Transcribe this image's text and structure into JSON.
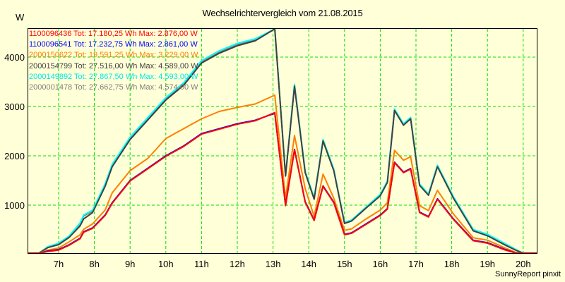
{
  "chart": {
    "title": "Wechselrichtervergleich vom 21.08.2015",
    "y_unit": "W",
    "footer": "SunnyReport pinxit",
    "legend": [
      {
        "label": "1100096436 Tot: 17.180,25 Wh Max: 2.876,00 W",
        "color": "#ff0000"
      },
      {
        "label": "1100096541 Tot: 17.232,75 Wh Max: 2.861,00 W",
        "color": "#0000ff"
      },
      {
        "label": "2000150622 Tot: 19.591,25 Wh Max: 3.229,00 W",
        "color": "#ff8000"
      },
      {
        "label": "2000154799 Tot: 27.516,00 Wh Max: 4.589,00 W",
        "color": "#404040"
      },
      {
        "label": "2000149892 Tot: 27.867,50 Wh Max: 4.593,00 W",
        "color": "#00ffff"
      },
      {
        "label": "2000001478 Tot: 27.662,75 Wh Max: 4.574,00 W",
        "color": "#808080"
      }
    ]
  },
  "chart_data": {
    "type": "line",
    "title": "Wechselrichtervergleich vom 21.08.2015",
    "xlabel": "",
    "ylabel": "W",
    "xlim": [
      5.9,
      20.4
    ],
    "ylim": [
      0,
      4600
    ],
    "grid": true,
    "grid_color": "#00e000",
    "legend_position": "top-left inside",
    "x_ticks": [
      7,
      8,
      9,
      10,
      11,
      12,
      13,
      14,
      15,
      16,
      17,
      18,
      19,
      20
    ],
    "x_tick_labels": [
      "7h",
      "8h",
      "9h",
      "10h",
      "11h",
      "12h",
      "13h",
      "14h",
      "15h",
      "16h",
      "17h",
      "18h",
      "19h",
      "20h"
    ],
    "y_ticks": [
      1000,
      2000,
      3000,
      4000
    ],
    "y_tick_labels": [
      "1000",
      "2000",
      "3000",
      "4000"
    ],
    "x": [
      5.9,
      6.45,
      6.7,
      7.0,
      7.3,
      7.6,
      7.7,
      7.95,
      8.3,
      8.5,
      9.0,
      9.5,
      10.0,
      10.5,
      11.0,
      11.5,
      12.0,
      12.5,
      13.05,
      13.35,
      13.6,
      13.9,
      14.15,
      14.4,
      14.7,
      15.0,
      15.2,
      15.6,
      16.0,
      16.2,
      16.4,
      16.65,
      16.85,
      17.1,
      17.35,
      17.6,
      18.05,
      18.6,
      19.0,
      19.5,
      19.8,
      20.0,
      20.4
    ],
    "series": [
      {
        "name": "2000001478",
        "color": "#808080",
        "values": [
          0,
          0,
          150,
          210,
          360,
          610,
          780,
          880,
          1400,
          1800,
          2350,
          2750,
          3150,
          3450,
          3900,
          4100,
          4250,
          4350,
          4574,
          1600,
          3430,
          1670,
          1130,
          2310,
          1710,
          640,
          690,
          950,
          1200,
          1470,
          2930,
          2630,
          2760,
          1410,
          1210,
          1790,
          1150,
          490,
          390,
          200,
          90,
          10,
          0
        ]
      },
      {
        "name": "2000149892",
        "color": "#00ffff",
        "values": [
          0,
          0,
          160,
          230,
          380,
          640,
          800,
          900,
          1430,
          1830,
          2380,
          2780,
          3180,
          3480,
          3930,
          4130,
          4280,
          4370,
          4593,
          1620,
          3450,
          1690,
          1150,
          2330,
          1730,
          650,
          700,
          960,
          1220,
          1490,
          2950,
          2650,
          2780,
          1430,
          1230,
          1810,
          1170,
          510,
          410,
          220,
          100,
          15,
          0
        ]
      },
      {
        "name": "2000154799",
        "color": "#404040",
        "values": [
          0,
          0,
          140,
          200,
          350,
          580,
          720,
          850,
          1380,
          1780,
          2330,
          2730,
          3130,
          3430,
          3880,
          4080,
          4230,
          4330,
          4589,
          1590,
          3410,
          1660,
          1120,
          2300,
          1700,
          630,
          680,
          940,
          1190,
          1460,
          2920,
          2620,
          2750,
          1400,
          1200,
          1780,
          1140,
          480,
          380,
          190,
          85,
          8,
          0
        ]
      },
      {
        "name": "2000150622",
        "color": "#ff8000",
        "values": [
          0,
          0,
          90,
          130,
          260,
          400,
          510,
          620,
          900,
          1250,
          1700,
          1950,
          2350,
          2550,
          2750,
          2900,
          2980,
          3050,
          3229,
          1140,
          2410,
          1340,
          770,
          1630,
          1140,
          490,
          520,
          720,
          900,
          1050,
          2110,
          1910,
          1980,
          990,
          890,
          1300,
          820,
          340,
          290,
          130,
          40,
          5,
          0
        ]
      },
      {
        "name": "1100096541",
        "color": "#0000ff",
        "values": [
          0,
          0,
          70,
          100,
          200,
          330,
          460,
          540,
          800,
          1050,
          1500,
          1750,
          2000,
          2200,
          2450,
          2550,
          2650,
          2720,
          2861,
          1000,
          2130,
          1070,
          700,
          1390,
          1060,
          410,
          440,
          620,
          800,
          930,
          1870,
          1670,
          1740,
          860,
          770,
          1130,
          720,
          290,
          240,
          100,
          30,
          0,
          0
        ]
      },
      {
        "name": "1100096436",
        "color": "#ff0000",
        "values": [
          0,
          0,
          60,
          90,
          190,
          320,
          450,
          530,
          790,
          1040,
          1490,
          1740,
          1990,
          2190,
          2440,
          2540,
          2640,
          2710,
          2876,
          990,
          2120,
          1060,
          690,
          1380,
          1050,
          400,
          430,
          610,
          790,
          920,
          1860,
          1660,
          1730,
          850,
          760,
          1120,
          710,
          280,
          230,
          90,
          20,
          0,
          0
        ]
      }
    ]
  }
}
